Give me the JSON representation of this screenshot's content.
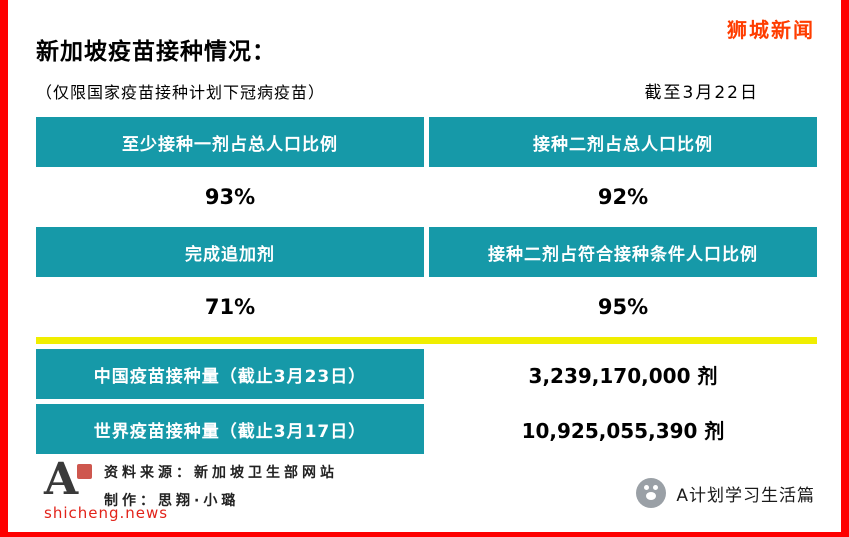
{
  "page": {
    "brand": "狮城新闻",
    "title": "新加坡疫苗接种情况：",
    "subtitle": "（仅限国家疫苗接种计划下冠病疫苗）",
    "as_of": "截至3月22日"
  },
  "table": {
    "stats": [
      {
        "label": "至少接种一剂占总人口比例",
        "value": "93%"
      },
      {
        "label": "接种二剂占总人口比例",
        "value": "92%"
      },
      {
        "label": "完成追加剂",
        "value": "71%"
      },
      {
        "label": "接种二剂占符合接种条件人口比例",
        "value": "95%"
      }
    ],
    "totals": [
      {
        "label": "中国疫苗接种量（截止3月23日）",
        "value": "3,239,170,000 剂"
      },
      {
        "label": "世界疫苗接种量（截止3月17日）",
        "value": "10,925,055,390 剂"
      }
    ]
  },
  "footer": {
    "logo_letter": "A",
    "source": "资料来源：新加坡卫生部网站",
    "maker": "制作：思翔·小璐",
    "site": "shicheng.news",
    "account": "A计划学习生活篇"
  },
  "colors": {
    "teal": "#1699A8",
    "yellow": "#F0EE00",
    "red_edge": "#FE0000",
    "brand_red": "#FF3D00",
    "site_red": "#E2231A"
  }
}
